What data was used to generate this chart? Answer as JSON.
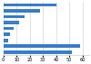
{
  "values": [
    40,
    28,
    16,
    12,
    8,
    5,
    4,
    58,
    52
  ],
  "bar_color": "#3a7ec8",
  "background_color": "#ffffff",
  "xlim": [
    0,
    65
  ],
  "bar_height": 0.55,
  "grid_color": "#cccccc",
  "tick_fontsize": 3.5,
  "xticks": [
    0,
    10,
    20,
    30,
    40,
    50,
    60
  ]
}
